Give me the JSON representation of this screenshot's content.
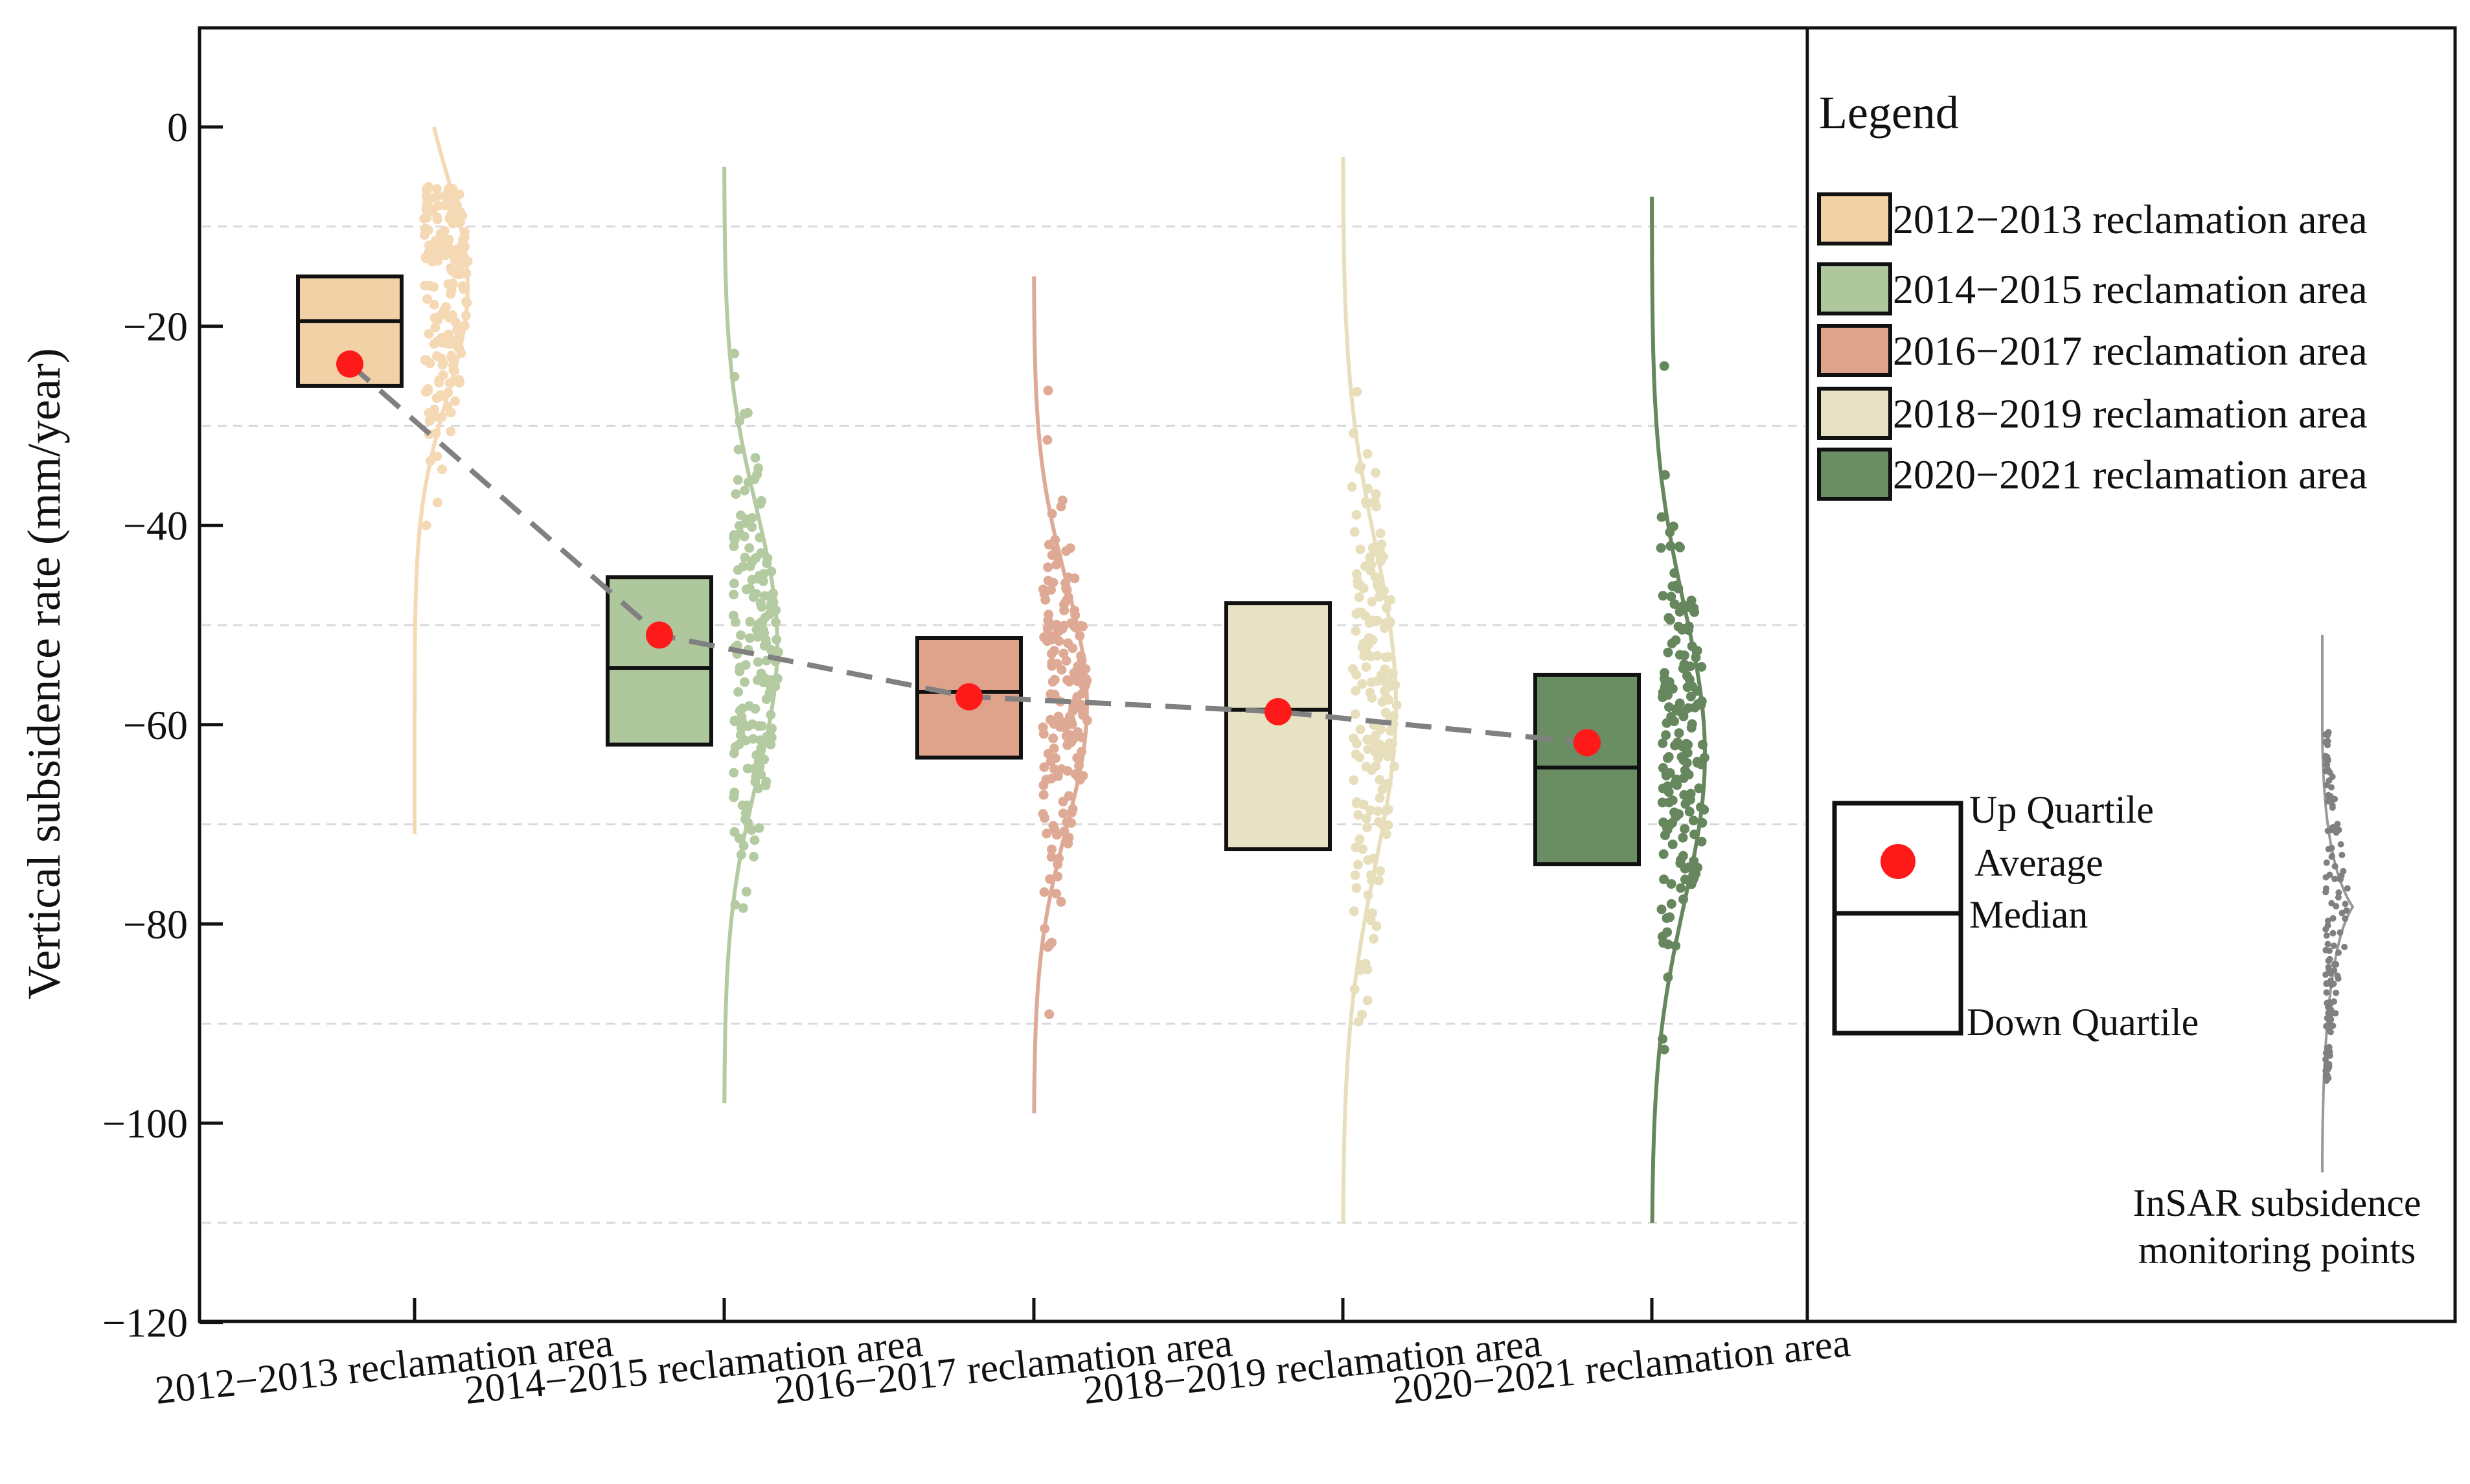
{
  "chart_data": {
    "type": "box-violin-scatter",
    "ylabel": "Vertical subsidence rate (mm/year)",
    "ylim": [
      -120,
      10
    ],
    "yticks": [
      0,
      -20,
      -40,
      -60,
      -80,
      -100,
      -120
    ],
    "grid_y": [
      -10,
      -30,
      -50,
      -70,
      -90,
      -110
    ],
    "categories": [
      "2012−2013 reclamation area",
      "2014−2015 reclamation area",
      "2016−2017 reclamation area",
      "2018−2019 reclamation area",
      "2020−2021 reclamation area"
    ],
    "series": [
      {
        "name": "2012−2013 reclamation area",
        "color": "#F3D1A7",
        "light": "#F5D9B5",
        "q1": -26,
        "median": -19.5,
        "q3": -15,
        "mean": -23.8,
        "min": -71,
        "max": 0,
        "points_center": -16,
        "points_spread": 9
      },
      {
        "name": "2014−2015 reclamation area",
        "color": "#AFC79D",
        "light": "#B4CBA2",
        "q1": -62,
        "median": -54.3,
        "q3": -45.2,
        "mean": -51,
        "min": -98,
        "max": -4,
        "points_center": -52,
        "points_spread": 11
      },
      {
        "name": "2016−2017 reclamation area",
        "color": "#DFA38C",
        "light": "#DFAA95",
        "q1": -63.3,
        "median": -56.7,
        "q3": -51.3,
        "mean": -57.2,
        "min": -99,
        "max": -15,
        "points_center": -58,
        "points_spread": 10
      },
      {
        "name": "2018−2019 reclamation area",
        "color": "#E8E2C4",
        "light": "#E7DFBC",
        "q1": -72.5,
        "median": -58.5,
        "q3": -47.8,
        "mean": -58.7,
        "min": -110,
        "max": -3,
        "points_center": -58,
        "points_spread": 13
      },
      {
        "name": "2020−2021 reclamation area",
        "color": "#6A8D64",
        "light": "#66875E",
        "q1": -74,
        "median": -64.3,
        "q3": -55,
        "mean": -61.8,
        "min": -110,
        "max": -7,
        "points_center": -63,
        "points_spread": 12
      }
    ],
    "mean_color": "#FF1A1A",
    "trend_line_color": "#808080",
    "legend_title": "Legend",
    "legend_position": "right",
    "legend_entries": [
      "2012−2013 reclamation area",
      "2014−2015 reclamation area",
      "2016−2017 reclamation area",
      "2018−2019 reclamation area",
      "2020−2021 reclamation area"
    ],
    "key": {
      "up_quartile": "Up Quartile",
      "average": "Average",
      "median": "Median",
      "down_quartile": "Down Quartile",
      "points_label_line1": "InSAR subsidence",
      "points_label_line2": "monitoring points",
      "points_color": "#808080"
    }
  }
}
